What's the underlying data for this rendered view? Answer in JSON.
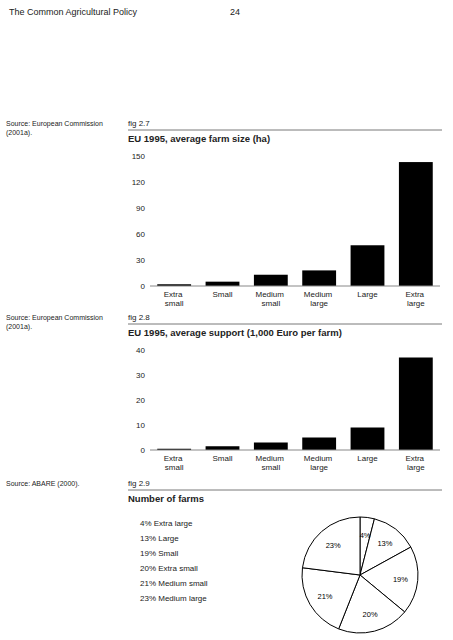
{
  "page": {
    "title": "The Common Agricultural Policy",
    "number": "24"
  },
  "chart_data": [
    {
      "type": "bar",
      "subtitle": "fig 2.7",
      "title": "EU 1995, average farm size (ha)",
      "annotations": [
        "Source: European Commission\n(2001a)."
      ],
      "categories": [
        "Extra small",
        "Small",
        "Medium small",
        "Medium large",
        "Large",
        "Extra large"
      ],
      "values": [
        2,
        5,
        13,
        18,
        47,
        143
      ],
      "color": "#000000",
      "ylim": [
        0,
        150
      ],
      "yticks": [
        0,
        30,
        60,
        90,
        120,
        150
      ],
      "grid": false
    },
    {
      "type": "bar",
      "subtitle": "fig 2.8",
      "title": "EU 1995, average support (1,000 Euro per farm)",
      "annotations": [
        "Source: European Commission\n(2001a)."
      ],
      "categories": [
        "Extra small",
        "Small",
        "Medium small",
        "Medium large",
        "Large",
        "Extra large"
      ],
      "values": [
        0.5,
        1.5,
        3,
        5,
        9,
        37
      ],
      "color": "#000000",
      "ylim": [
        0,
        40
      ],
      "yticks": [
        0,
        10,
        20,
        30,
        40
      ],
      "grid": false
    },
    {
      "type": "pie",
      "subtitle": "fig 2.9",
      "title": "Number of farms",
      "annotations": [
        "Source: ABARE (2000)."
      ],
      "categories": [
        "4% Extra large",
        "13% Large",
        "19% Small",
        "20% Extra small",
        "21% Medium small",
        "23% Medium large"
      ],
      "values": [
        4,
        13,
        19,
        20,
        21,
        23
      ],
      "value_labels": [
        "4%",
        "13%",
        "19%",
        "20%",
        "21%",
        "23%"
      ],
      "color": "#ffffff",
      "data_labels": true,
      "legend": "left"
    }
  ]
}
